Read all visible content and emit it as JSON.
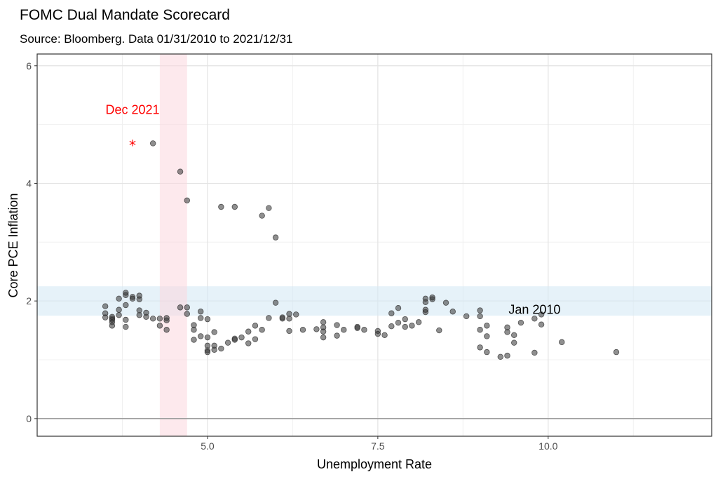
{
  "chart_data": {
    "type": "scatter",
    "title": "FOMC Dual Mandate Scorecard",
    "subtitle": "Source: Bloomberg. Data 01/31/2010 to 2021/12/31",
    "xlabel": "Unemployment Rate",
    "ylabel": "Core PCE Inflation",
    "xlim": [
      2.5,
      12.4
    ],
    "ylim": [
      -0.3,
      6.2
    ],
    "x_ticks": [
      5.0,
      7.5,
      10.0
    ],
    "x_tick_labels": [
      "5.0",
      "7.5",
      "10.0"
    ],
    "y_ticks": [
      0,
      2,
      4,
      6
    ],
    "y_tick_labels": [
      "0",
      "2",
      "4",
      "6"
    ],
    "grid": true,
    "reference_lines": [
      {
        "axis": "y",
        "value": 0,
        "color": "#9e9e9e"
      }
    ],
    "bands": [
      {
        "axis": "y",
        "from": 1.75,
        "to": 2.25,
        "color": "#d6e9f5",
        "opacity": 0.6
      },
      {
        "axis": "x",
        "from": 4.3,
        "to": 4.7,
        "color": "#fbd7df",
        "opacity": 0.55
      }
    ],
    "point_color": "#333333",
    "highlight_color": "#ff0000",
    "annotations": [
      {
        "text": "Dec 2021",
        "x": 3.9,
        "y": 5.25,
        "color": "#ff0000"
      },
      {
        "text": "Jan 2010",
        "x": 9.8,
        "y": 1.85,
        "color": "#000000"
      }
    ],
    "highlight_point": {
      "x": 3.9,
      "y": 4.67,
      "marker": "*"
    },
    "points": [
      [
        11.0,
        1.13
      ],
      [
        10.2,
        1.3
      ],
      [
        9.9,
        1.6
      ],
      [
        9.9,
        1.77
      ],
      [
        9.8,
        1.12
      ],
      [
        9.8,
        1.7
      ],
      [
        9.6,
        1.63
      ],
      [
        9.5,
        1.29
      ],
      [
        9.5,
        1.42
      ],
      [
        9.4,
        1.07
      ],
      [
        9.4,
        1.47
      ],
      [
        9.4,
        1.55
      ],
      [
        9.3,
        1.05
      ],
      [
        9.1,
        1.13
      ],
      [
        9.1,
        1.4
      ],
      [
        9.1,
        1.58
      ],
      [
        9.0,
        1.21
      ],
      [
        9.0,
        1.51
      ],
      [
        9.0,
        1.74
      ],
      [
        9.0,
        1.84
      ],
      [
        8.8,
        1.74
      ],
      [
        8.6,
        1.82
      ],
      [
        8.5,
        1.97
      ],
      [
        8.4,
        1.5
      ],
      [
        8.3,
        2.03
      ],
      [
        8.3,
        2.06
      ],
      [
        8.2,
        1.81
      ],
      [
        8.2,
        1.85
      ],
      [
        8.2,
        1.98
      ],
      [
        8.2,
        2.04
      ],
      [
        8.1,
        1.64
      ],
      [
        8.0,
        1.58
      ],
      [
        7.9,
        1.56
      ],
      [
        7.9,
        1.69
      ],
      [
        7.8,
        1.63
      ],
      [
        7.8,
        1.88
      ],
      [
        7.7,
        1.57
      ],
      [
        7.7,
        1.79
      ],
      [
        7.6,
        1.42
      ],
      [
        7.5,
        1.44
      ],
      [
        7.5,
        1.49
      ],
      [
        7.3,
        1.51
      ],
      [
        7.2,
        1.54
      ],
      [
        7.2,
        1.56
      ],
      [
        7.0,
        1.51
      ],
      [
        6.9,
        1.41
      ],
      [
        6.9,
        1.59
      ],
      [
        6.7,
        1.38
      ],
      [
        6.7,
        1.48
      ],
      [
        6.7,
        1.55
      ],
      [
        6.7,
        1.64
      ],
      [
        6.6,
        1.52
      ],
      [
        6.4,
        1.51
      ],
      [
        6.3,
        1.77
      ],
      [
        6.2,
        1.49
      ],
      [
        6.2,
        1.7
      ],
      [
        6.2,
        1.78
      ],
      [
        6.1,
        1.7
      ],
      [
        6.1,
        1.72
      ],
      [
        6.0,
        1.97
      ],
      [
        6.0,
        3.08
      ],
      [
        5.9,
        1.71
      ],
      [
        5.9,
        3.58
      ],
      [
        5.8,
        1.51
      ],
      [
        5.8,
        3.45
      ],
      [
        5.7,
        1.35
      ],
      [
        5.7,
        1.58
      ],
      [
        5.6,
        1.28
      ],
      [
        5.6,
        1.48
      ],
      [
        5.5,
        1.38
      ],
      [
        5.4,
        1.34
      ],
      [
        5.4,
        1.36
      ],
      [
        5.4,
        3.6
      ],
      [
        5.3,
        1.29
      ],
      [
        5.2,
        1.19
      ],
      [
        5.2,
        3.6
      ],
      [
        5.1,
        1.17
      ],
      [
        5.1,
        1.24
      ],
      [
        5.1,
        1.47
      ],
      [
        5.0,
        1.13
      ],
      [
        5.0,
        1.16
      ],
      [
        5.0,
        1.24
      ],
      [
        5.0,
        1.38
      ],
      [
        5.0,
        1.69
      ],
      [
        4.9,
        1.4
      ],
      [
        4.9,
        1.71
      ],
      [
        4.9,
        1.82
      ],
      [
        4.8,
        1.34
      ],
      [
        4.8,
        1.51
      ],
      [
        4.8,
        1.59
      ],
      [
        4.7,
        1.78
      ],
      [
        4.7,
        1.89
      ],
      [
        4.7,
        3.71
      ],
      [
        4.6,
        1.89
      ],
      [
        4.6,
        4.2
      ],
      [
        4.4,
        1.51
      ],
      [
        4.4,
        1.67
      ],
      [
        4.4,
        1.71
      ],
      [
        4.3,
        1.58
      ],
      [
        4.3,
        1.7
      ],
      [
        4.2,
        1.7
      ],
      [
        4.2,
        4.68
      ],
      [
        4.1,
        1.73
      ],
      [
        4.1,
        1.8
      ],
      [
        4.0,
        1.76
      ],
      [
        4.0,
        1.84
      ],
      [
        4.0,
        2.03
      ],
      [
        4.0,
        2.09
      ],
      [
        3.9,
        2.04
      ],
      [
        3.9,
        2.07
      ],
      [
        3.8,
        1.56
      ],
      [
        3.8,
        1.68
      ],
      [
        3.8,
        1.93
      ],
      [
        3.8,
        2.1
      ],
      [
        3.8,
        2.14
      ],
      [
        3.7,
        1.76
      ],
      [
        3.7,
        1.85
      ],
      [
        3.7,
        2.04
      ],
      [
        3.6,
        1.58
      ],
      [
        3.6,
        1.64
      ],
      [
        3.6,
        1.68
      ],
      [
        3.6,
        1.7
      ],
      [
        3.6,
        1.73
      ],
      [
        3.5,
        1.72
      ],
      [
        3.5,
        1.79
      ],
      [
        3.5,
        1.91
      ]
    ]
  }
}
